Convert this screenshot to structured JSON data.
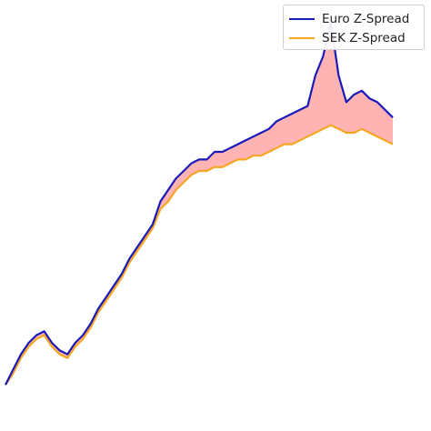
{
  "chart_data": {
    "type": "line",
    "title": "",
    "xlabel": "",
    "ylabel": "",
    "axes_visible": false,
    "grid": false,
    "legend_position": "top-right",
    "fill_between": {
      "color": "#ffb3b3",
      "description": "shaded where Euro Z-Spread exceeds SEK Z-Spread"
    },
    "ylim": [
      0,
      100
    ],
    "series": [
      {
        "name": "Euro Z-Spread",
        "color": "#1a1ab8",
        "points": [
          [
            0,
            4
          ],
          [
            2,
            8
          ],
          [
            4,
            12
          ],
          [
            6,
            15
          ],
          [
            8,
            17
          ],
          [
            10,
            18
          ],
          [
            12,
            15
          ],
          [
            14,
            13
          ],
          [
            16,
            12
          ],
          [
            18,
            15
          ],
          [
            20,
            17
          ],
          [
            22,
            20
          ],
          [
            24,
            24
          ],
          [
            26,
            27
          ],
          [
            28,
            30
          ],
          [
            30,
            33
          ],
          [
            32,
            37
          ],
          [
            34,
            40
          ],
          [
            36,
            43
          ],
          [
            38,
            46
          ],
          [
            40,
            52
          ],
          [
            42,
            55
          ],
          [
            44,
            58
          ],
          [
            46,
            60
          ],
          [
            48,
            62
          ],
          [
            50,
            63
          ],
          [
            52,
            63
          ],
          [
            54,
            65
          ],
          [
            56,
            65
          ],
          [
            58,
            66
          ],
          [
            60,
            67
          ],
          [
            62,
            68
          ],
          [
            64,
            69
          ],
          [
            66,
            70
          ],
          [
            68,
            71
          ],
          [
            70,
            73
          ],
          [
            72,
            74
          ],
          [
            74,
            75
          ],
          [
            76,
            76
          ],
          [
            78,
            77
          ],
          [
            80,
            85
          ],
          [
            82,
            90
          ],
          [
            84,
            99
          ],
          [
            86,
            85
          ],
          [
            88,
            78
          ],
          [
            90,
            80
          ],
          [
            92,
            81
          ],
          [
            94,
            79
          ],
          [
            96,
            78
          ],
          [
            98,
            76
          ],
          [
            100,
            74
          ]
        ]
      },
      {
        "name": "SEK Z-Spread",
        "color": "#f5a623",
        "points": [
          [
            0,
            4
          ],
          [
            2,
            7
          ],
          [
            4,
            11
          ],
          [
            6,
            14
          ],
          [
            8,
            16
          ],
          [
            10,
            17
          ],
          [
            12,
            14
          ],
          [
            14,
            12
          ],
          [
            16,
            11
          ],
          [
            18,
            14
          ],
          [
            20,
            16
          ],
          [
            22,
            19
          ],
          [
            24,
            23
          ],
          [
            26,
            26
          ],
          [
            28,
            29
          ],
          [
            30,
            32
          ],
          [
            32,
            36
          ],
          [
            34,
            39
          ],
          [
            36,
            42
          ],
          [
            38,
            45
          ],
          [
            40,
            50
          ],
          [
            42,
            52
          ],
          [
            44,
            55
          ],
          [
            46,
            57
          ],
          [
            48,
            59
          ],
          [
            50,
            60
          ],
          [
            52,
            60
          ],
          [
            54,
            61
          ],
          [
            56,
            61
          ],
          [
            58,
            62
          ],
          [
            60,
            63
          ],
          [
            62,
            63
          ],
          [
            64,
            64
          ],
          [
            66,
            64
          ],
          [
            68,
            65
          ],
          [
            70,
            66
          ],
          [
            72,
            67
          ],
          [
            74,
            67
          ],
          [
            76,
            68
          ],
          [
            78,
            69
          ],
          [
            80,
            70
          ],
          [
            82,
            71
          ],
          [
            84,
            72
          ],
          [
            86,
            71
          ],
          [
            88,
            70
          ],
          [
            90,
            70
          ],
          [
            92,
            71
          ],
          [
            94,
            70
          ],
          [
            96,
            69
          ],
          [
            98,
            68
          ],
          [
            100,
            67
          ]
        ]
      }
    ]
  }
}
